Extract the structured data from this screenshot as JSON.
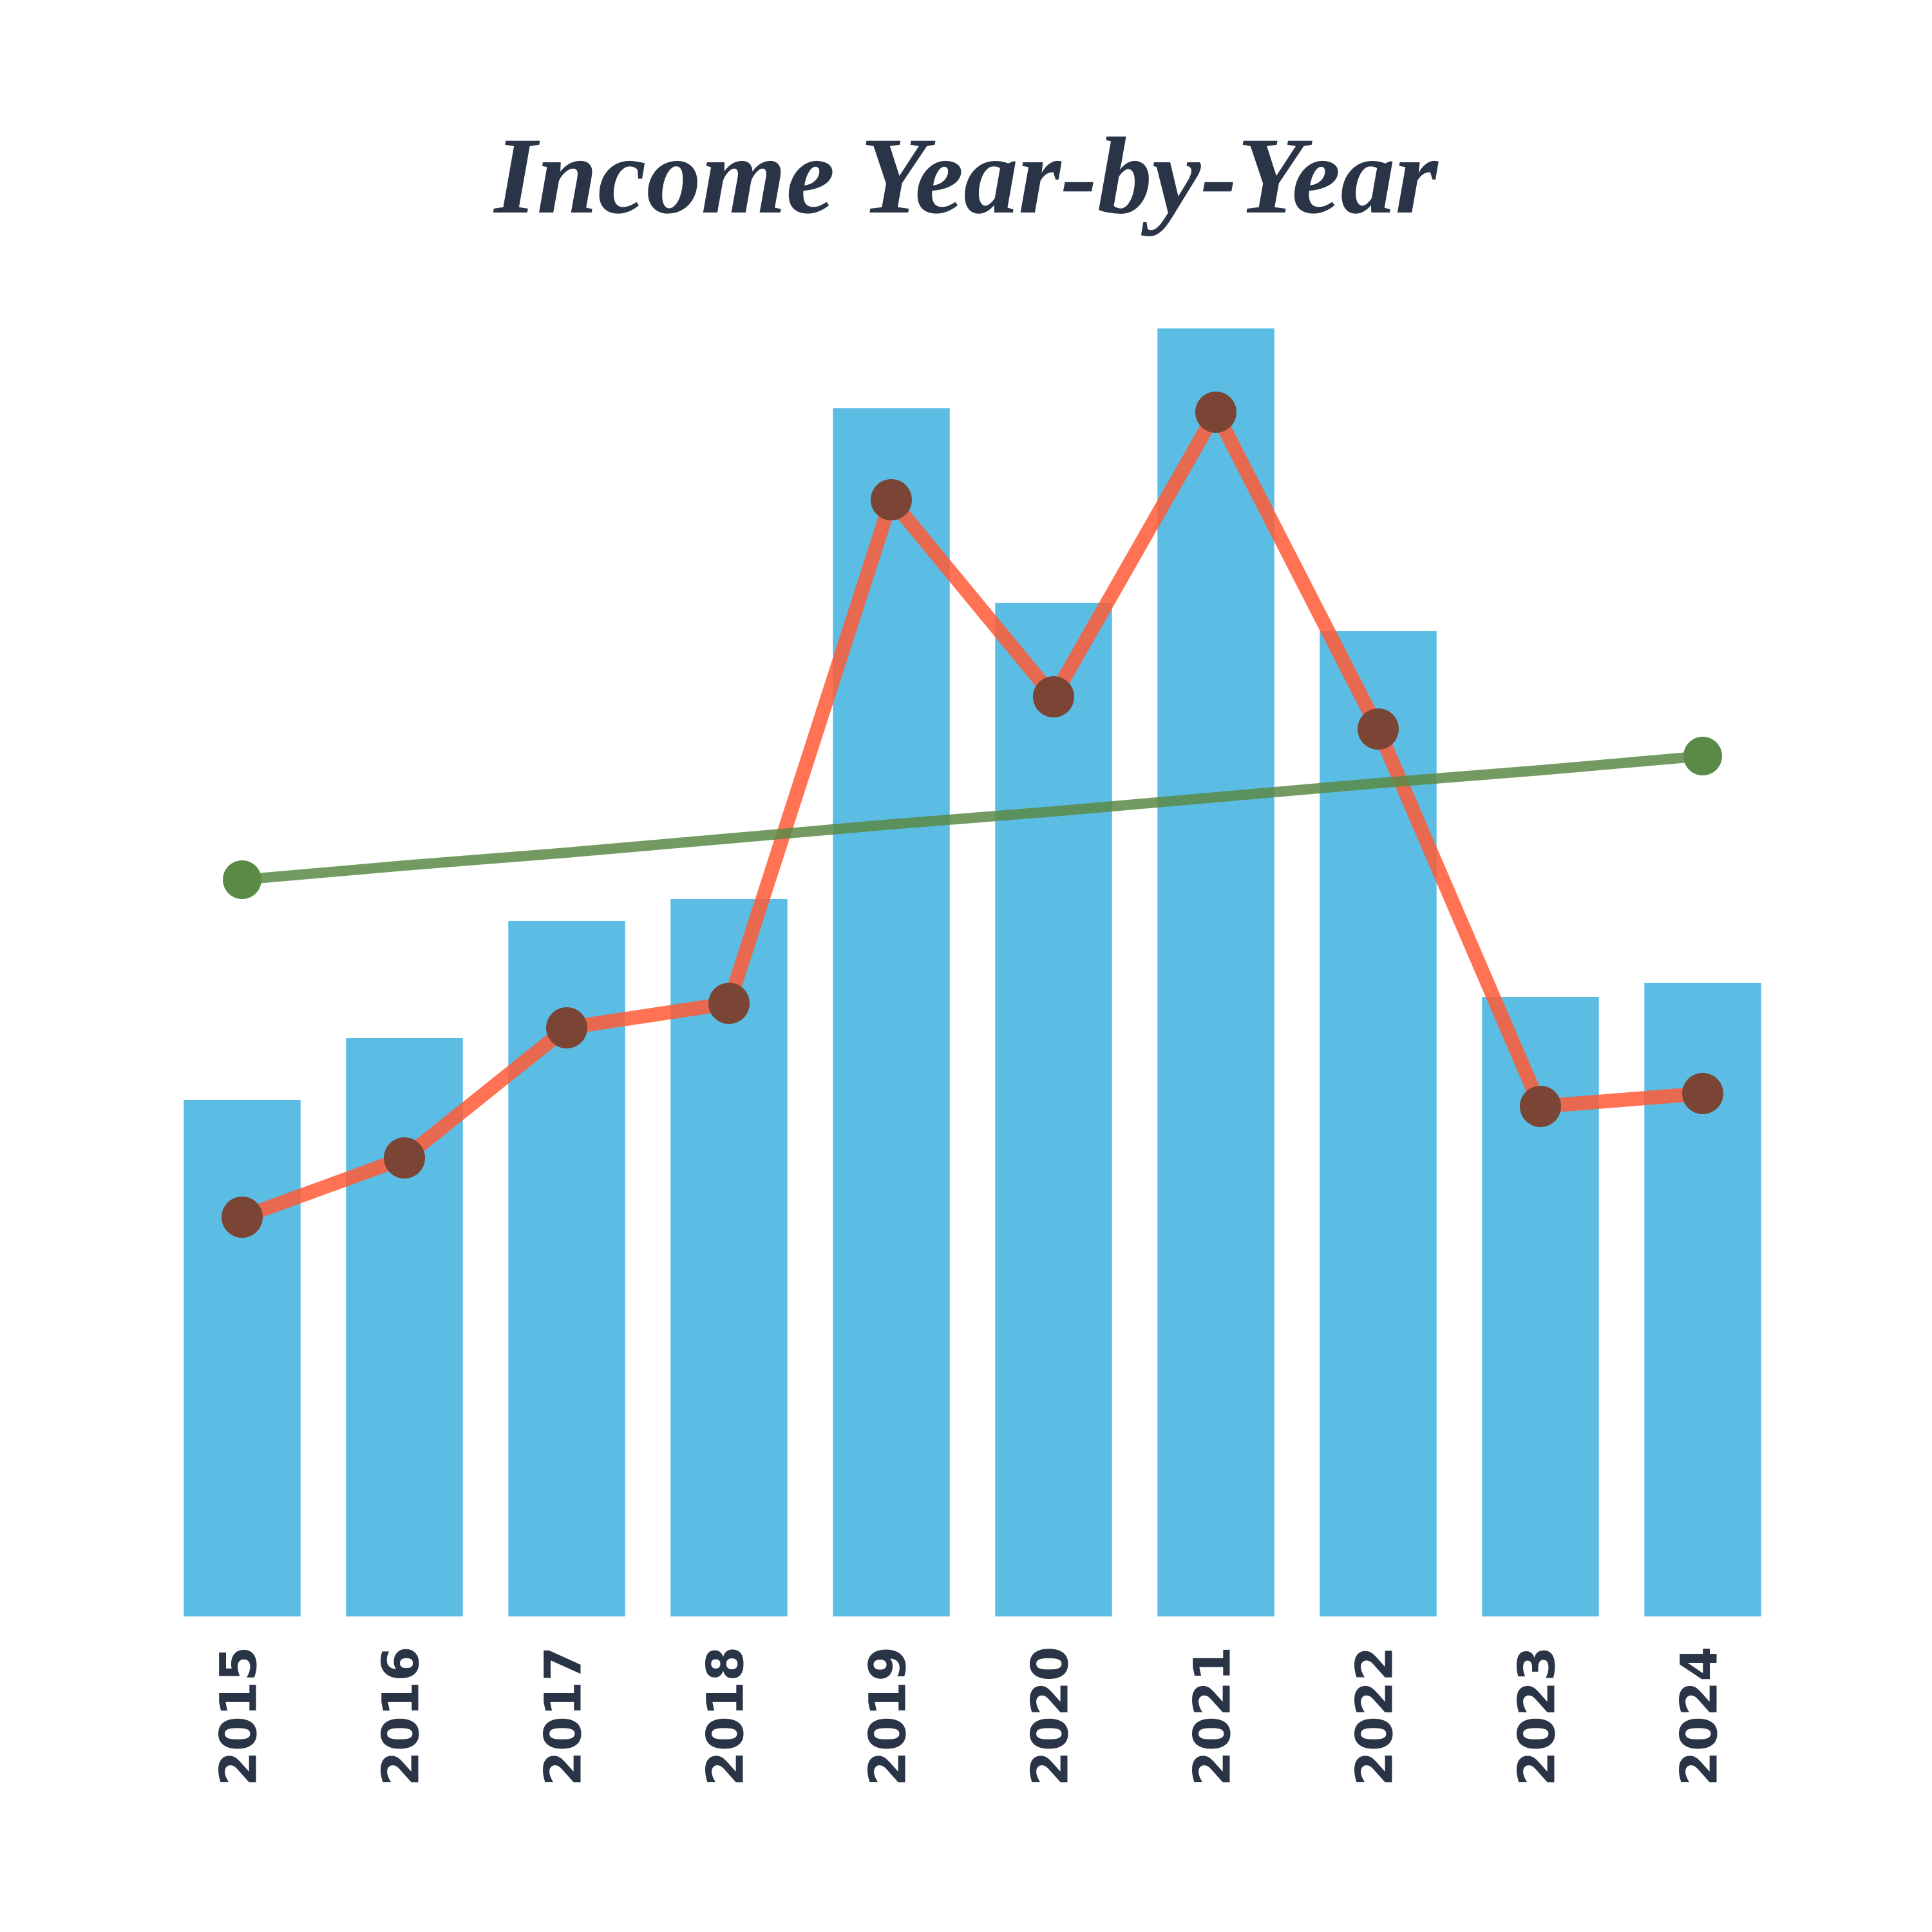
{
  "chart_data": {
    "type": "bar",
    "title": "Income Year-by-Year",
    "categories": [
      "2015",
      "2016",
      "2017",
      "2018",
      "2019",
      "2020",
      "2021",
      "2022",
      "2023",
      "2024"
    ],
    "ylim": [
      0,
      100
    ],
    "grid": false,
    "series": [
      {
        "type": "bar",
        "color": "#5bbde4",
        "values": [
          40.1,
          44.9,
          54.0,
          55.7,
          93.8,
          78.7,
          100,
          76.5,
          48.1,
          49.2
        ]
      },
      {
        "type": "line",
        "color": "#ff5a36",
        "marker_color": "#7a4535",
        "markers": "all",
        "values": [
          31.0,
          35.6,
          45.7,
          47.6,
          86.7,
          71.4,
          93.5,
          68.9,
          39.6,
          40.6
        ]
      },
      {
        "type": "line",
        "color": "#5a8a45",
        "marker_color": "#5a8a45",
        "markers": "ends",
        "values": [
          57.2,
          58.3,
          59.3,
          60.4,
          61.5,
          62.5,
          63.6,
          64.7,
          65.7,
          66.8
        ]
      }
    ]
  }
}
